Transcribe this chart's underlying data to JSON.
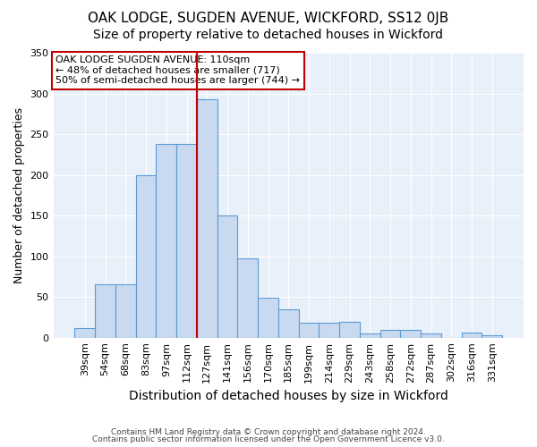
{
  "title1": "OAK LODGE, SUGDEN AVENUE, WICKFORD, SS12 0JB",
  "title2": "Size of property relative to detached houses in Wickford",
  "xlabel": "Distribution of detached houses by size in Wickford",
  "ylabel": "Number of detached properties",
  "footnote1": "Contains HM Land Registry data © Crown copyright and database right 2024.",
  "footnote2": "Contains public sector information licensed under the Open Government Licence v3.0.",
  "categories": [
    "39sqm",
    "54sqm",
    "68sqm",
    "83sqm",
    "97sqm",
    "112sqm",
    "127sqm",
    "141sqm",
    "156sqm",
    "170sqm",
    "185sqm",
    "199sqm",
    "214sqm",
    "229sqm",
    "243sqm",
    "258sqm",
    "272sqm",
    "287sqm",
    "302sqm",
    "316sqm",
    "331sqm"
  ],
  "values": [
    12,
    65,
    65,
    200,
    238,
    238,
    293,
    150,
    97,
    49,
    35,
    18,
    18,
    19,
    5,
    9,
    9,
    5,
    0,
    6,
    3
  ],
  "bar_color": "#c9d9f0",
  "bar_edge_color": "#5b9bd5",
  "vline_x": 5.5,
  "vline_color": "#c00000",
  "annotation_text": "OAK LODGE SUGDEN AVENUE: 110sqm\n← 48% of detached houses are smaller (717)\n50% of semi-detached houses are larger (744) →",
  "annotation_box_color": "white",
  "annotation_box_edge": "#c00000",
  "bg_color": "#ffffff",
  "plot_bg_color": "#e8f0fa",
  "ylim": [
    0,
    350
  ],
  "yticks": [
    0,
    50,
    100,
    150,
    200,
    250,
    300,
    350
  ],
  "title1_fontsize": 11,
  "title2_fontsize": 10,
  "xlabel_fontsize": 10,
  "ylabel_fontsize": 9,
  "tick_fontsize": 8,
  "annotation_fontsize": 8
}
